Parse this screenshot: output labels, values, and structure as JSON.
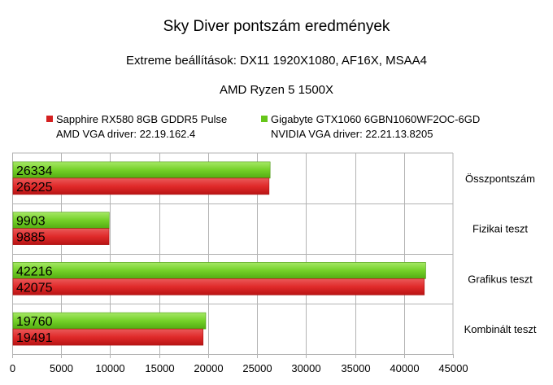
{
  "chart_data": {
    "type": "bar",
    "orientation": "horizontal",
    "title": "Sky Diver pontszám eredmények",
    "subtitles": [
      "Extreme beállítások: DX11 1920X1080, AF16X, MSAA4",
      "AMD Ryzen 5 1500X"
    ],
    "categories": [
      "Összpontszám",
      "Fizikai teszt",
      "Grafikus teszt",
      "Kombinált teszt"
    ],
    "series": [
      {
        "name": "Sapphire RX580 8GB GDDR5 Pulse",
        "name_line2": "AMD VGA driver: 22.19.162.4",
        "color": "#d42020",
        "values": [
          26225,
          9885,
          42075,
          19491
        ]
      },
      {
        "name": "Gigabyte GTX1060 6GBN1060WF2OC-6GD",
        "name_line2": "NVIDIA VGA driver: 22.21.13.8205",
        "color": "#66c61a",
        "values": [
          26334,
          9903,
          42216,
          19760
        ]
      }
    ],
    "xlim": [
      0,
      45000
    ],
    "xticks": [
      0,
      5000,
      10000,
      15000,
      20000,
      25000,
      30000,
      35000,
      40000,
      45000
    ],
    "category_labels_position": "right",
    "legend_position": "top",
    "grid": true
  }
}
